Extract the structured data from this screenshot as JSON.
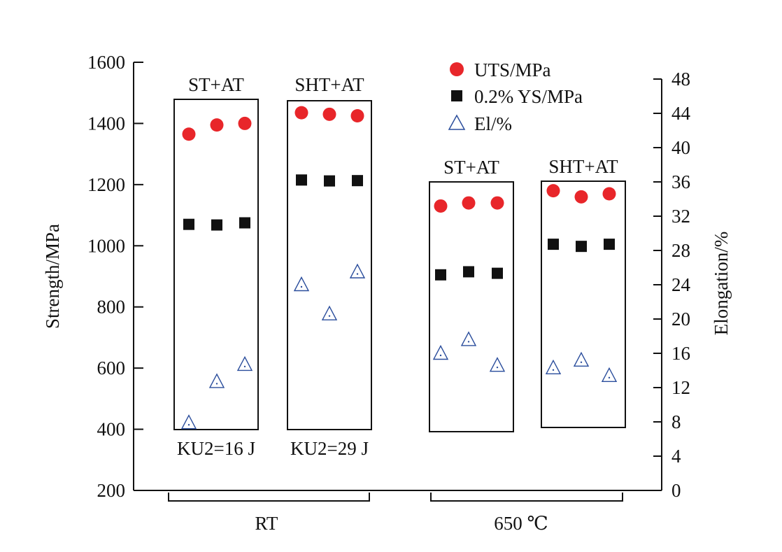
{
  "chart_data": {
    "type": "scatter",
    "y_left": {
      "label": "Strength/MPa",
      "range": [
        200,
        1600
      ],
      "ticks": [
        200,
        400,
        600,
        800,
        1000,
        1200,
        1400,
        1600
      ]
    },
    "y_right": {
      "label": "Elongation/%",
      "range": [
        0,
        48
      ],
      "ticks": [
        0,
        4,
        8,
        12,
        16,
        20,
        24,
        28,
        32,
        36,
        40,
        44,
        48
      ]
    },
    "legend": {
      "placement": "top-right",
      "items": [
        {
          "key": "uts",
          "label": "UTS/MPa",
          "marker": "circle",
          "color": "#e8262a"
        },
        {
          "key": "ys",
          "label": "0.2% YS/MPa",
          "marker": "square",
          "color": "#111111"
        },
        {
          "key": "el",
          "label": "El/%",
          "marker": "triangle-open",
          "color": "#2a4d9c"
        }
      ]
    },
    "temperature_groups": [
      {
        "label": "RT"
      },
      {
        "label": "650 ℃"
      }
    ],
    "conditions": [
      {
        "name": "ST+AT",
        "group": "RT",
        "note": "KU2=16 J",
        "uts": [
          1365,
          1395,
          1400
        ],
        "ys": [
          1070,
          1068,
          1075
        ],
        "el": [
          7.9,
          12.7,
          14.7
        ]
      },
      {
        "name": "SHT+AT",
        "group": "RT",
        "note": "KU2=29 J",
        "uts": [
          1435,
          1430,
          1425
        ],
        "ys": [
          1215,
          1212,
          1213
        ],
        "el": [
          24.0,
          20.6,
          25.5
        ]
      },
      {
        "name": "ST+AT",
        "group": "650 ℃",
        "note": "",
        "uts": [
          1130,
          1140,
          1140
        ],
        "ys": [
          905,
          915,
          910
        ],
        "el": [
          16.0,
          17.6,
          14.6
        ]
      },
      {
        "name": "SHT+AT",
        "group": "650 ℃",
        "note": "",
        "uts": [
          1180,
          1160,
          1170
        ],
        "ys": [
          1005,
          998,
          1005
        ],
        "el": [
          14.3,
          15.2,
          13.4
        ]
      }
    ]
  }
}
